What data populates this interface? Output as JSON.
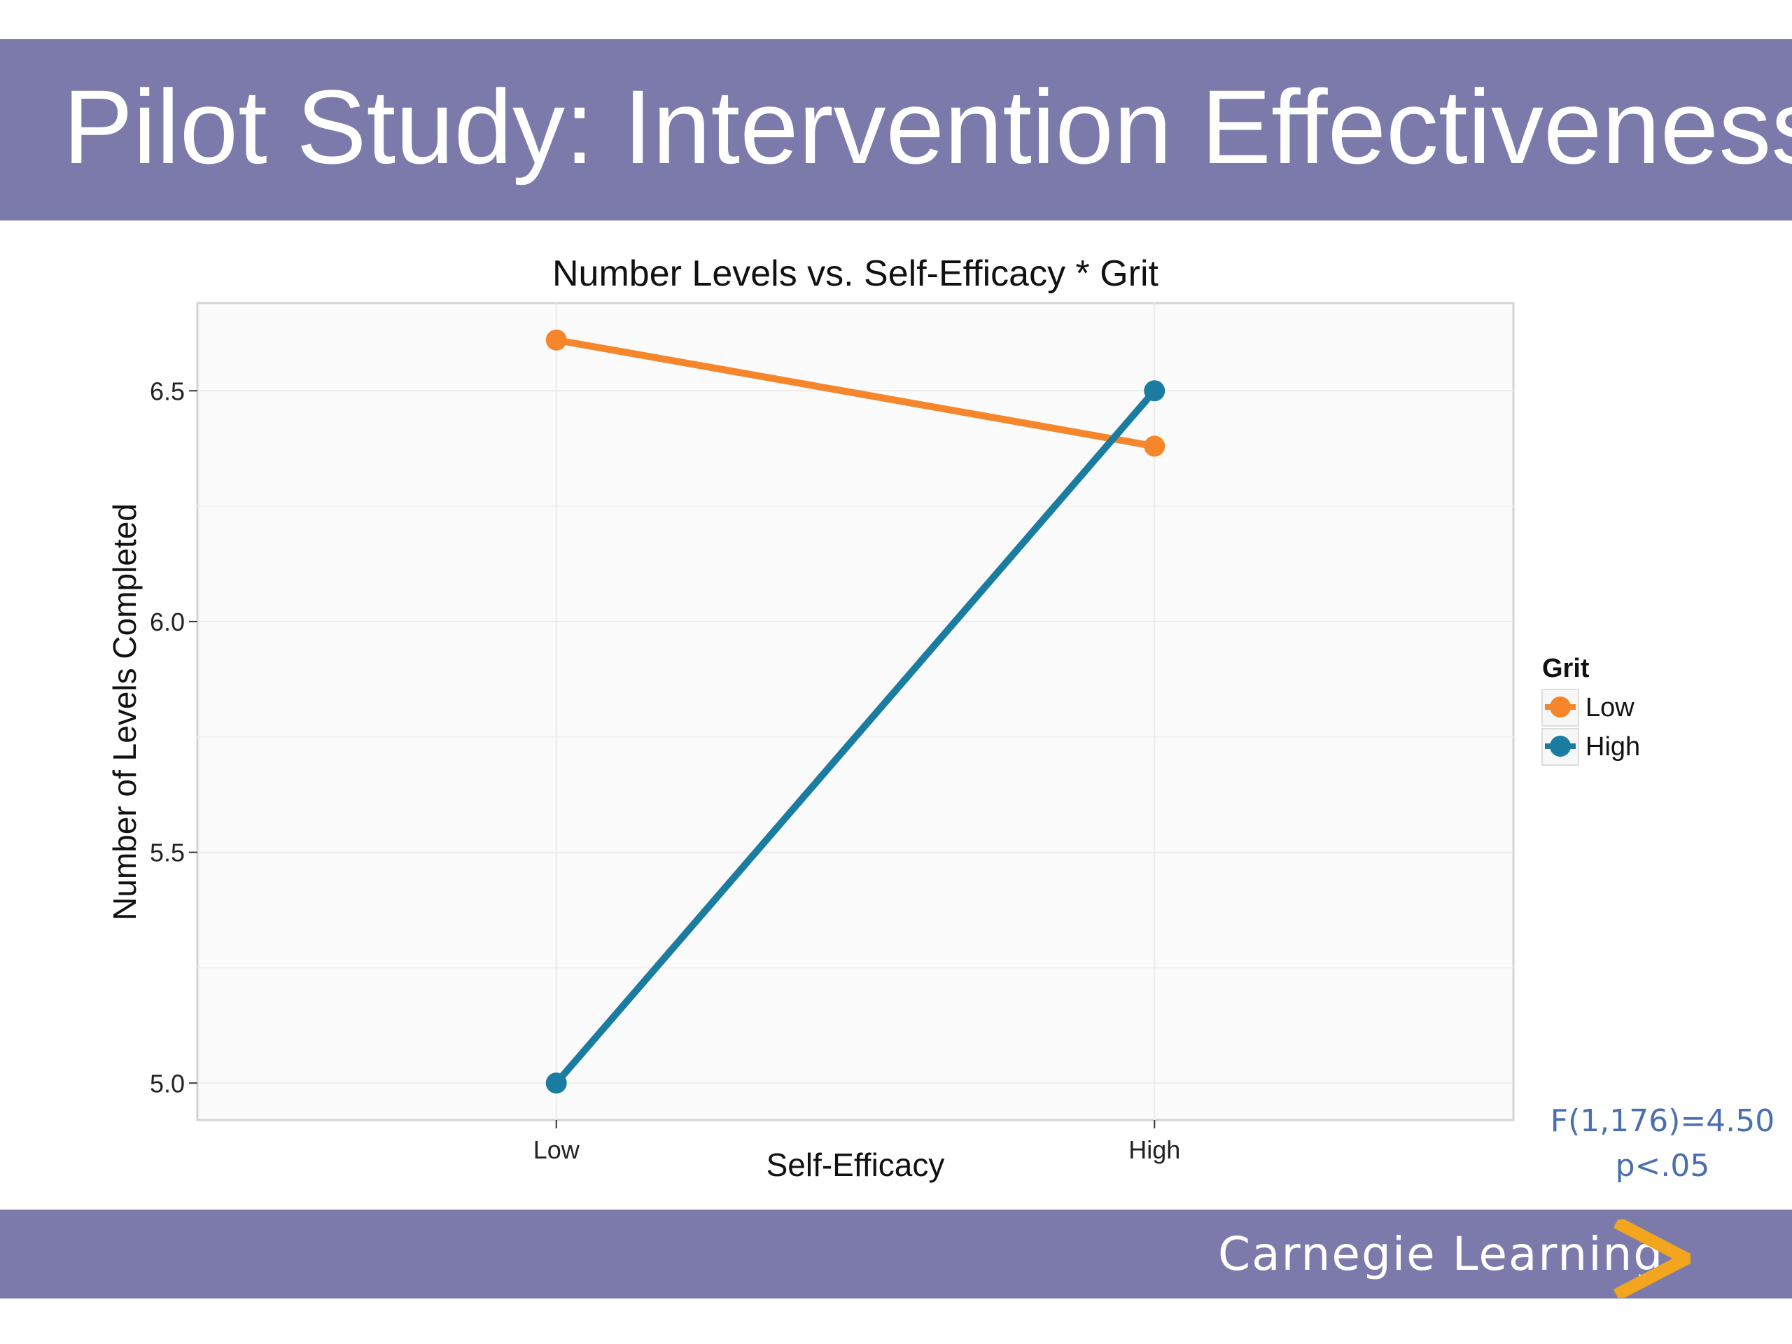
{
  "slide": {
    "title": "Pilot Study: Intervention Effectiveness"
  },
  "chart_data": {
    "type": "line",
    "title": "Number Levels vs. Self-Efficacy * Grit",
    "xlabel": "Self-Efficacy",
    "ylabel": "Number of Levels Completed",
    "categories": [
      "Low",
      "High"
    ],
    "ylim": [
      4.92,
      6.69
    ],
    "yticks": [
      5.0,
      5.5,
      6.0,
      6.5
    ],
    "ytick_labels": [
      "5.0",
      "5.5",
      "6.0",
      "6.5"
    ],
    "grid": true,
    "legend_title": "Grit",
    "legend_position": "right",
    "series": [
      {
        "name": "Low",
        "values": [
          6.61,
          6.38
        ],
        "color": "#f5862b"
      },
      {
        "name": "High",
        "values": [
          5.0,
          6.5
        ],
        "color": "#1b7ca1"
      }
    ]
  },
  "stats": {
    "line1": "F(1,176)=4.50",
    "line2": "p<.05"
  },
  "footer": {
    "brand": "Carnegie Learning",
    "logo_icon": "chevron-right-icon"
  }
}
